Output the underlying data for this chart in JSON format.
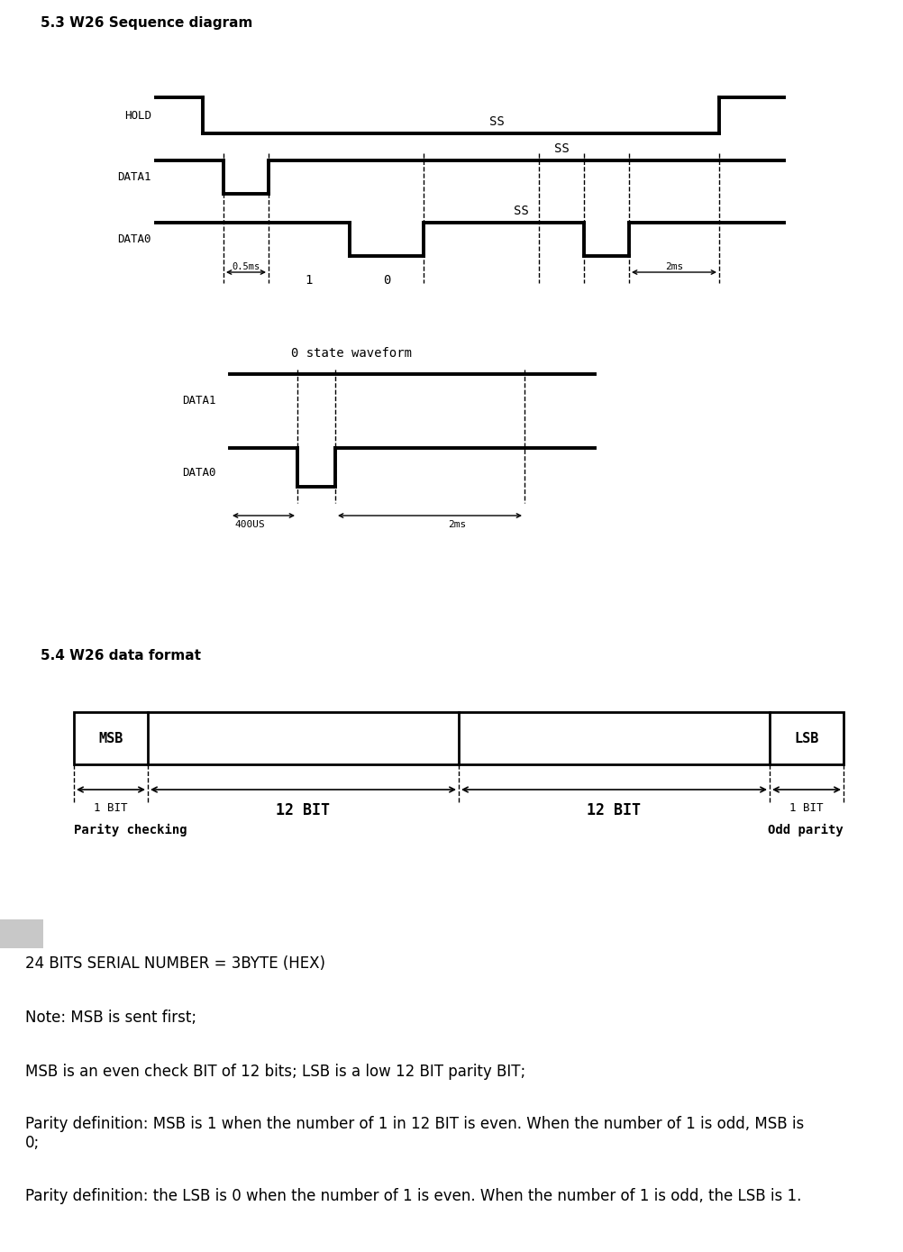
{
  "title_53": "5.3 W26 Sequence diagram",
  "title_54": "5.4 W26 data format",
  "bg_color": "#ffffff",
  "text_color": "#000000",
  "waveform_title": "0 state waveform",
  "text_lines": [
    "24 BITS SERIAL NUMBER = 3BYTE (HEX)",
    "Note: MSB is sent first;",
    "MSB is an even check BIT of 12 bits; LSB is a low 12 BIT parity BIT;",
    "Parity definition: MSB is 1 when the number of 1 in 12 BIT is even. When the number of 1 is odd, MSB is\n0;",
    "Parity definition: the LSB is 0 when the number of 1 is even. When the number of 1 is odd, the LSB is 1."
  ]
}
